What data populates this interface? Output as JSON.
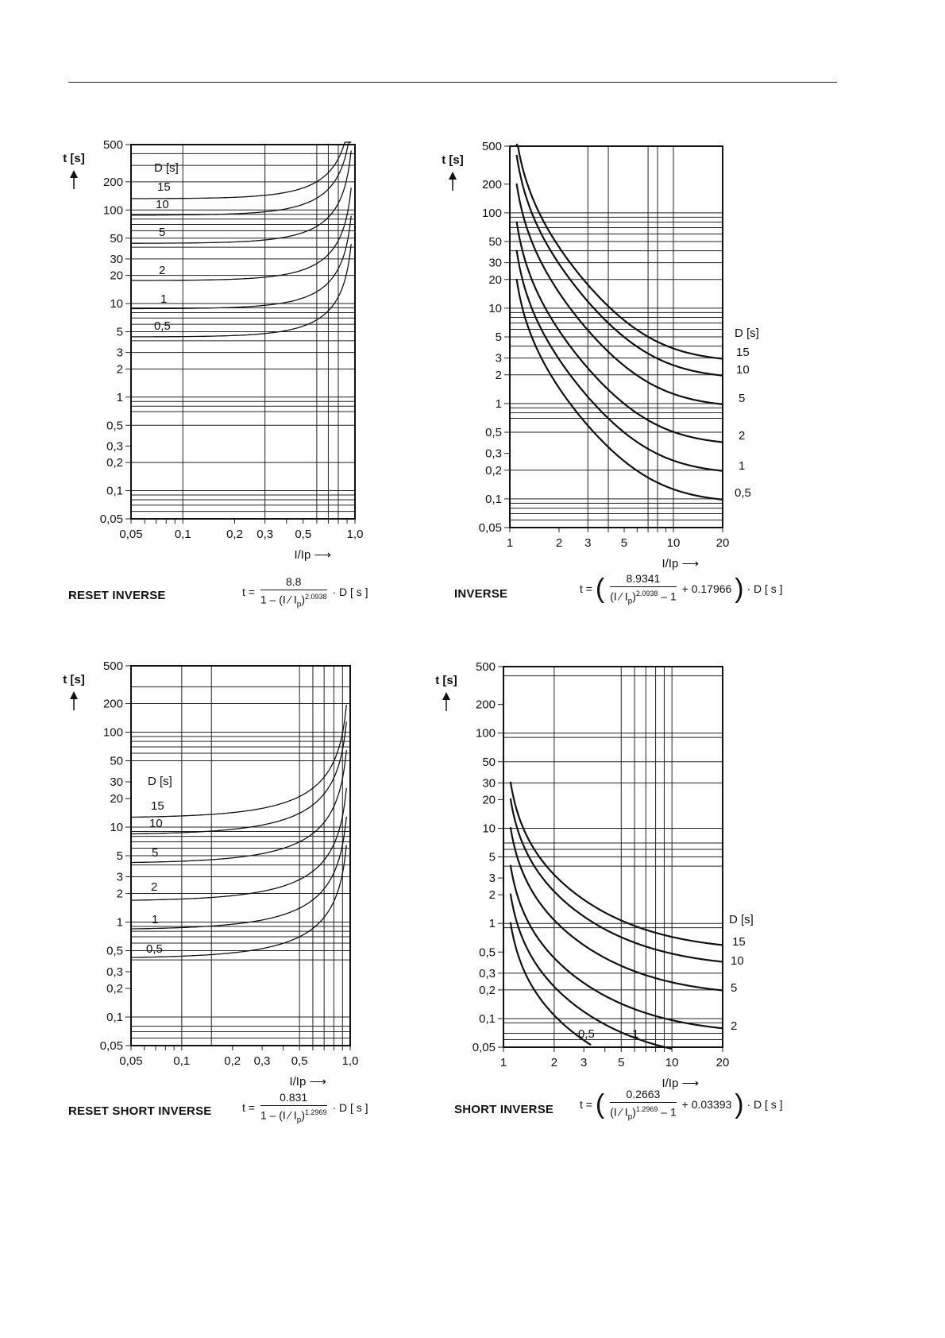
{
  "charts": [
    {
      "caption": "RESET INVERSE",
      "formula": {
        "t": "t =",
        "num": "8.8",
        "den_pre": "1 – (I ∕ I",
        "den_sub": "p",
        "den_post": ")",
        "den_exp": "2.0938",
        "post": "· D  [ s ]"
      }
    },
    {
      "caption": "INVERSE",
      "formula": {
        "t": "t =",
        "num": "8.9341",
        "den_pre": "(I ∕ I",
        "den_sub": "p",
        "den_post": ")",
        "den_exp": "2.0938",
        "den_tail": " – 1",
        "plus": "+ 0.17966",
        "post": "· D  [ s ]"
      }
    },
    {
      "caption": "RESET SHORT INVERSE",
      "formula": {
        "t": "t =",
        "num": "0.831",
        "den_pre": "1 – (I ∕ I",
        "den_sub": "p",
        "den_post": ")",
        "den_exp": "1.2969",
        "post": "· D  [ s ]"
      }
    },
    {
      "caption": "SHORT INVERSE",
      "formula": {
        "t": "t =",
        "num": "0.2663",
        "den_pre": "(I ∕ I",
        "den_sub": "p",
        "den_post": ")",
        "den_exp": "1.2969",
        "den_tail": " – 1",
        "plus": "+ 0.03393",
        "post": "· D  [ s ]"
      }
    }
  ],
  "chart_data": [
    {
      "type": "line",
      "title": "RESET INVERSE",
      "xlabel": "I/Ip ⟶",
      "ylabel": "t [s]",
      "legend_title": "D [s]",
      "x_scale": "log",
      "y_scale": "log",
      "xlim": [
        0.05,
        1.0
      ],
      "ylim": [
        0.05,
        500
      ],
      "x_ticks": [
        0.05,
        0.1,
        0.2,
        0.3,
        0.5,
        1.0
      ],
      "x_tick_labels": [
        "0,05",
        "0,1",
        "0,2",
        "0,3",
        "0,5",
        "1,0"
      ],
      "x_gridlines": [
        0.05,
        0.1,
        0.3,
        0.6,
        0.7,
        0.8
      ],
      "y_ticks": [
        500,
        200,
        100,
        50,
        30,
        20,
        10,
        5,
        3,
        2,
        1,
        0.5,
        0.3,
        0.2,
        0.1,
        0.05
      ],
      "y_tick_labels": [
        "500",
        "200",
        "100",
        "50",
        "30",
        "20",
        "10",
        "5",
        "3",
        "2",
        "1",
        "0,5",
        "0,3",
        "0,2",
        "0,1",
        "0,05"
      ],
      "y_gridlines": [
        500,
        400,
        300,
        200,
        100,
        90,
        80,
        70,
        60,
        50,
        40,
        30,
        20,
        10,
        9,
        8,
        7,
        6,
        5,
        4,
        3,
        2,
        1,
        0.9,
        0.8,
        0.7,
        0.5,
        0.2,
        0.1,
        0.09,
        0.08,
        0.07,
        0.06,
        0.05
      ],
      "formula": {
        "numerator": 8.8,
        "exponent": 2.0938,
        "kind": "reset"
      },
      "series": [
        {
          "name": "15",
          "x": [
            0.05,
            0.2,
            0.4,
            0.6,
            0.8,
            0.9,
            0.95
          ],
          "y": [
            132,
            136,
            150,
            190,
            310,
            540,
            1000
          ]
        },
        {
          "name": "10",
          "x": [
            0.05,
            0.2,
            0.4,
            0.6,
            0.8,
            0.9,
            0.95
          ],
          "y": [
            88,
            91,
            100,
            127,
            206,
            360,
            670
          ]
        },
        {
          "name": "5",
          "x": [
            0.05,
            0.2,
            0.4,
            0.6,
            0.8,
            0.9,
            0.95
          ],
          "y": [
            44,
            45.5,
            50,
            63,
            103,
            180,
            335
          ]
        },
        {
          "name": "2",
          "x": [
            0.05,
            0.2,
            0.4,
            0.6,
            0.8,
            0.9,
            0.95
          ],
          "y": [
            17.6,
            18.2,
            20,
            25,
            41,
            72,
            134
          ]
        },
        {
          "name": "1",
          "x": [
            0.05,
            0.2,
            0.4,
            0.6,
            0.8,
            0.9,
            0.95
          ],
          "y": [
            8.8,
            9.1,
            10,
            12.7,
            20.6,
            36,
            67
          ]
        },
        {
          "name": "0,5",
          "x": [
            0.05,
            0.2,
            0.4,
            0.6,
            0.8,
            0.9,
            0.95
          ],
          "y": [
            4.4,
            4.55,
            5,
            6.3,
            10.3,
            18,
            33.5
          ]
        }
      ]
    },
    {
      "type": "line",
      "title": "INVERSE",
      "xlabel": "I/Ip ⟶",
      "ylabel": "t [s]",
      "legend_title": "D [s]",
      "x_scale": "log",
      "y_scale": "log",
      "xlim": [
        1,
        20
      ],
      "ylim": [
        0.05,
        500
      ],
      "x_ticks": [
        1,
        2,
        3,
        5,
        10,
        20
      ],
      "x_tick_labels": [
        "1",
        "2",
        "3",
        "5",
        "10",
        "20"
      ],
      "x_gridlines": [
        1,
        3,
        4,
        7,
        8,
        10,
        20
      ],
      "y_ticks": [
        500,
        200,
        100,
        50,
        30,
        20,
        10,
        5,
        3,
        2,
        1,
        0.5,
        0.3,
        0.2,
        0.1,
        0.05
      ],
      "y_tick_labels": [
        "500",
        "200",
        "100",
        "50",
        "30",
        "20",
        "10",
        "5",
        "3",
        "2",
        "1",
        "0,5",
        "0,3",
        "0,2",
        "0,1",
        "0,05"
      ],
      "y_gridlines": [
        500,
        100,
        90,
        80,
        70,
        60,
        50,
        40,
        30,
        20,
        10,
        9,
        8,
        7,
        6,
        5,
        4,
        3,
        2,
        1,
        0.9,
        0.8,
        0.7,
        0.5,
        0.2,
        0.1,
        0.09,
        0.08,
        0.07,
        0.06,
        0.05
      ],
      "formula": {
        "numerator": 8.9341,
        "exponent": 2.0938,
        "offset": 0.17966,
        "kind": "trip"
      },
      "series": [
        {
          "name": "15",
          "x": [
            1.1,
            1.5,
            2,
            3,
            5,
            10,
            20
          ],
          "y": [
            620,
            111,
            48,
            19.5,
            8.3,
            4.0,
            2.96
          ]
        },
        {
          "name": "10",
          "x": [
            1.1,
            1.5,
            2,
            3,
            5,
            10,
            20
          ],
          "y": [
            410,
            74,
            32,
            13,
            5.5,
            2.7,
            1.97
          ]
        },
        {
          "name": "5",
          "x": [
            1.1,
            1.5,
            2,
            3,
            5,
            10,
            20
          ],
          "y": [
            205,
            37,
            16,
            6.5,
            2.8,
            1.33,
            0.99
          ]
        },
        {
          "name": "2",
          "x": [
            1.1,
            1.5,
            2,
            3,
            5,
            10,
            20
          ],
          "y": [
            82,
            14.8,
            6.4,
            2.6,
            1.11,
            0.53,
            0.39
          ]
        },
        {
          "name": "1",
          "x": [
            1.1,
            1.5,
            2,
            3,
            5,
            10,
            20
          ],
          "y": [
            41,
            7.4,
            3.2,
            1.3,
            0.55,
            0.27,
            0.197
          ]
        },
        {
          "name": "0,5",
          "x": [
            1.1,
            1.5,
            2,
            3,
            5,
            10,
            20
          ],
          "y": [
            20.5,
            3.7,
            1.6,
            0.65,
            0.28,
            0.133,
            0.099
          ]
        }
      ]
    },
    {
      "type": "line",
      "title": "RESET SHORT INVERSE",
      "xlabel": "I/Ip ⟶",
      "ylabel": "t [s]",
      "legend_title": "D [s]",
      "x_scale": "log",
      "y_scale": "log",
      "xlim": [
        0.05,
        1.0
      ],
      "ylim": [
        0.05,
        500
      ],
      "x_ticks": [
        0.05,
        0.1,
        0.2,
        0.3,
        0.5,
        1.0
      ],
      "x_tick_labels": [
        "0,05",
        "0,1",
        "0,2",
        "0,3",
        "0,5",
        "1,0"
      ],
      "x_gridlines": [
        0.05,
        0.1,
        0.15,
        0.5,
        0.6,
        0.7,
        0.8,
        0.9
      ],
      "y_ticks": [
        500,
        200,
        100,
        50,
        30,
        20,
        10,
        5,
        3,
        2,
        1,
        0.5,
        0.3,
        0.2,
        0.1,
        0.05
      ],
      "y_tick_labels": [
        "500",
        "200",
        "100",
        "50",
        "30",
        "20",
        "10",
        "5",
        "3",
        "2",
        "1",
        "0,5",
        "0,3",
        "0,2",
        "0,1",
        "0,05"
      ],
      "y_gridlines": [
        500,
        300,
        200,
        100,
        90,
        80,
        70,
        60,
        50,
        10,
        9,
        8,
        7,
        6,
        5,
        4,
        3,
        2,
        1,
        0.9,
        0.8,
        0.7,
        0.6,
        0.5,
        0.4,
        0.1,
        0.08,
        0.07,
        0.06,
        0.05
      ],
      "formula": {
        "numerator": 0.831,
        "exponent": 1.2969,
        "kind": "reset"
      },
      "series": [
        {
          "name": "15",
          "x": [
            0.05,
            0.2,
            0.4,
            0.6,
            0.8,
            0.9,
            0.95
          ],
          "y": [
            12.5,
            13.4,
            15.8,
            21,
            36,
            60,
            110
          ]
        },
        {
          "name": "10",
          "x": [
            0.05,
            0.2,
            0.4,
            0.6,
            0.8,
            0.9,
            0.95
          ],
          "y": [
            8.3,
            8.9,
            10.5,
            14,
            24,
            40,
            73
          ]
        },
        {
          "name": "5",
          "x": [
            0.05,
            0.2,
            0.4,
            0.6,
            0.8,
            0.9,
            0.95
          ],
          "y": [
            4.15,
            4.45,
            5.25,
            7,
            12,
            20,
            36.5
          ]
        },
        {
          "name": "2",
          "x": [
            0.05,
            0.2,
            0.4,
            0.6,
            0.8,
            0.9,
            0.95
          ],
          "y": [
            1.66,
            1.78,
            2.1,
            2.8,
            4.8,
            8,
            14.6
          ]
        },
        {
          "name": "1",
          "x": [
            0.05,
            0.2,
            0.4,
            0.6,
            0.8,
            0.9,
            0.95
          ],
          "y": [
            0.83,
            0.89,
            1.05,
            1.4,
            2.4,
            4,
            7.3
          ]
        },
        {
          "name": "0,5",
          "x": [
            0.05,
            0.2,
            0.4,
            0.6,
            0.8,
            0.9,
            0.95
          ],
          "y": [
            0.415,
            0.445,
            0.525,
            0.7,
            1.2,
            2,
            3.65
          ]
        }
      ]
    },
    {
      "type": "line",
      "title": "SHORT INVERSE",
      "xlabel": "I/Ip ⟶",
      "ylabel": "t [s]",
      "legend_title": "D [s]",
      "x_scale": "log",
      "y_scale": "log",
      "xlim": [
        1,
        20
      ],
      "ylim": [
        0.05,
        500
      ],
      "x_ticks": [
        1,
        2,
        3,
        5,
        10,
        20
      ],
      "x_tick_labels": [
        "1",
        "2",
        "3",
        "5",
        "10",
        "20"
      ],
      "x_gridlines": [
        2,
        5,
        6,
        7,
        8,
        9,
        10,
        20
      ],
      "y_ticks": [
        500,
        200,
        100,
        50,
        30,
        20,
        10,
        5,
        3,
        2,
        1,
        0.5,
        0.3,
        0.2,
        0.1,
        0.05
      ],
      "y_tick_labels": [
        "500",
        "200",
        "100",
        "50",
        "30",
        "20",
        "10",
        "5",
        "3",
        "2",
        "1",
        "0,5",
        "0,3",
        "0,2",
        "0,1",
        "0,05"
      ],
      "y_gridlines": [
        500,
        400,
        100,
        90,
        50,
        30,
        10,
        7,
        6,
        5,
        4,
        1,
        0.9,
        0.3,
        0.2,
        0.1,
        0.09,
        0.07,
        0.06,
        0.05
      ],
      "formula": {
        "numerator": 0.2663,
        "exponent": 1.2969,
        "offset": 0.03393,
        "kind": "trip"
      },
      "series": [
        {
          "name": "15",
          "x": [
            1.1,
            1.5,
            2,
            3,
            5,
            10,
            20
          ],
          "y": [
            30,
            6.6,
            3.4,
            1.63,
            0.85,
            0.52,
            0.6
          ]
        },
        {
          "name": "10",
          "x": [
            1.1,
            1.5,
            2,
            3,
            5,
            10,
            20
          ],
          "y": [
            20,
            4.4,
            2.27,
            1.09,
            0.57,
            0.35,
            0.4
          ]
        },
        {
          "name": "5",
          "x": [
            1.1,
            1.5,
            2,
            3,
            5,
            10,
            20
          ],
          "y": [
            10,
            2.2,
            1.13,
            0.54,
            0.28,
            0.17,
            0.2
          ]
        },
        {
          "name": "2",
          "x": [
            1.1,
            1.5,
            2,
            3,
            5,
            10,
            20
          ],
          "y": [
            4,
            0.88,
            0.45,
            0.22,
            0.114,
            0.07,
            0.08
          ]
        },
        {
          "name": "1",
          "x": [
            1.1,
            1.5,
            2,
            3,
            5,
            10
          ],
          "y": [
            2,
            0.44,
            0.227,
            0.109,
            0.057,
            0.035
          ]
        },
        {
          "name": "0,5",
          "x": [
            1.1,
            1.5,
            2,
            3,
            3.3
          ],
          "y": [
            1,
            0.22,
            0.113,
            0.054,
            0.045
          ]
        }
      ]
    }
  ]
}
